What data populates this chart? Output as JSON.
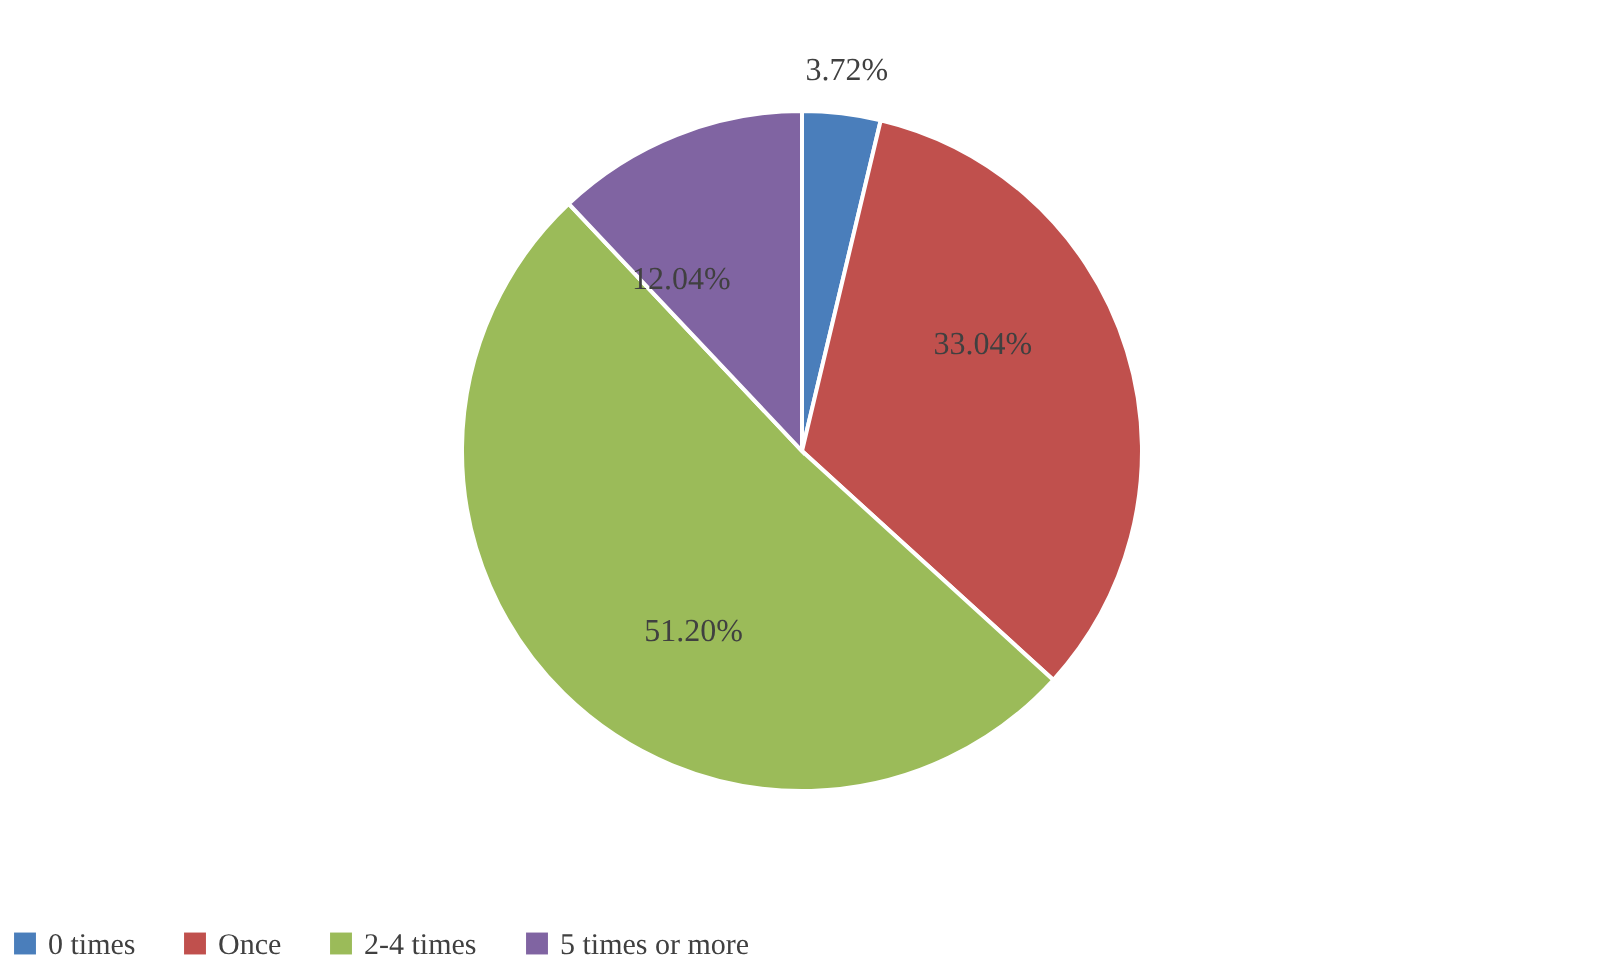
{
  "chart_data": {
    "type": "pie",
    "categories": [
      "0 times",
      "Once",
      "2-4 times",
      "5 times or more"
    ],
    "values": [
      3.72,
      33.04,
      51.2,
      12.04
    ],
    "value_labels": [
      "3.72%",
      "33.04%",
      "51.20%",
      "12.04%"
    ],
    "colors": [
      "#4a7ebb",
      "#c0504d",
      "#9bbb59",
      "#8064a2"
    ],
    "legend": "bottom"
  }
}
